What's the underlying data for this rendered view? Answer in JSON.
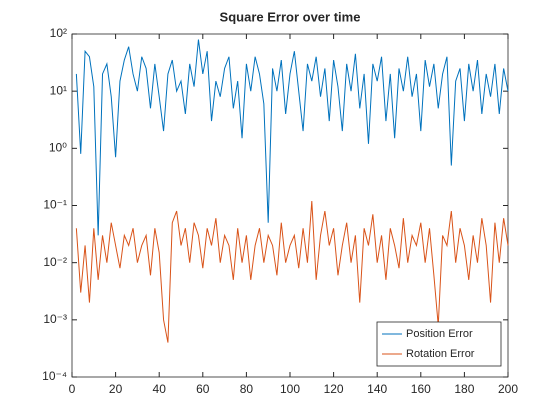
{
  "chart_data": {
    "type": "line",
    "title": "Square Error over time",
    "x": [
      2,
      4,
      6,
      8,
      10,
      12,
      14,
      16,
      18,
      20,
      22,
      24,
      26,
      28,
      30,
      32,
      34,
      36,
      38,
      40,
      42,
      44,
      46,
      48,
      50,
      52,
      54,
      56,
      58,
      60,
      62,
      64,
      66,
      68,
      70,
      72,
      74,
      76,
      78,
      80,
      82,
      84,
      86,
      88,
      90,
      92,
      94,
      96,
      98,
      100,
      102,
      104,
      106,
      108,
      110,
      112,
      114,
      116,
      118,
      120,
      122,
      124,
      126,
      128,
      130,
      132,
      134,
      136,
      138,
      140,
      142,
      144,
      146,
      148,
      150,
      152,
      154,
      156,
      158,
      160,
      162,
      164,
      166,
      168,
      170,
      172,
      174,
      176,
      178,
      180,
      182,
      184,
      186,
      188,
      190,
      192,
      194,
      196,
      198,
      200
    ],
    "series": [
      {
        "name": "Position Error",
        "color": "#0072bd",
        "values": [
          20,
          0.8,
          50,
          40,
          12,
          0.03,
          20,
          30,
          8,
          0.7,
          15,
          35,
          60,
          20,
          10,
          40,
          25,
          5,
          30,
          8,
          2,
          20,
          35,
          10,
          15,
          4,
          30,
          12,
          80,
          20,
          50,
          3,
          15,
          8,
          25,
          40,
          5,
          15,
          1.5,
          30,
          10,
          40,
          20,
          6,
          0.05,
          25,
          10,
          35,
          4,
          20,
          50,
          10,
          2,
          30,
          15,
          40,
          8,
          25,
          3,
          35,
          12,
          2,
          30,
          10,
          45,
          5,
          20,
          1.2,
          30,
          15,
          40,
          3,
          20,
          1.5,
          25,
          10,
          40,
          8,
          20,
          2,
          35,
          12,
          30,
          5,
          20,
          40,
          0.5,
          15,
          25,
          3,
          30,
          10,
          35,
          4,
          20,
          8,
          30,
          4,
          25,
          10
        ]
      },
      {
        "name": "Rotation Error",
        "color": "#d95319",
        "values": [
          0.04,
          0.003,
          0.02,
          0.002,
          0.04,
          0.005,
          0.03,
          0.01,
          0.05,
          0.02,
          0.008,
          0.03,
          0.02,
          0.04,
          0.01,
          0.02,
          0.03,
          0.006,
          0.04,
          0.015,
          0.001,
          0.0004,
          0.05,
          0.08,
          0.02,
          0.04,
          0.01,
          0.05,
          0.03,
          0.008,
          0.04,
          0.02,
          0.06,
          0.01,
          0.03,
          0.02,
          0.005,
          0.04,
          0.01,
          0.03,
          0.005,
          0.02,
          0.04,
          0.01,
          0.03,
          0.02,
          0.006,
          0.05,
          0.01,
          0.02,
          0.03,
          0.008,
          0.04,
          0.01,
          0.12,
          0.005,
          0.03,
          0.08,
          0.02,
          0.04,
          0.006,
          0.02,
          0.05,
          0.01,
          0.03,
          0.002,
          0.04,
          0.02,
          0.07,
          0.01,
          0.03,
          0.005,
          0.04,
          0.02,
          0.008,
          0.06,
          0.01,
          0.03,
          0.02,
          0.05,
          0.01,
          0.04,
          0.006,
          0.0008,
          0.03,
          0.02,
          0.08,
          0.01,
          0.04,
          0.02,
          0.005,
          0.03,
          0.01,
          0.06,
          0.02,
          0.002,
          0.05,
          0.01,
          0.06,
          0.02
        ]
      }
    ],
    "xlim": [
      0,
      200
    ],
    "xticks": [
      0,
      20,
      40,
      60,
      80,
      100,
      120,
      140,
      160,
      180,
      200
    ],
    "ylim": [
      0.0001,
      100
    ],
    "log_y": true,
    "yticks": [
      {
        "value": 0.0001,
        "label": "10⁻⁴"
      },
      {
        "value": 0.001,
        "label": "10⁻³"
      },
      {
        "value": 0.01,
        "label": "10⁻²"
      },
      {
        "value": 0.1,
        "label": "10⁻¹"
      },
      {
        "value": 1,
        "label": "10⁰"
      },
      {
        "value": 10,
        "label": "10¹"
      },
      {
        "value": 100,
        "label": "10²"
      }
    ],
    "legend": "southeast"
  }
}
